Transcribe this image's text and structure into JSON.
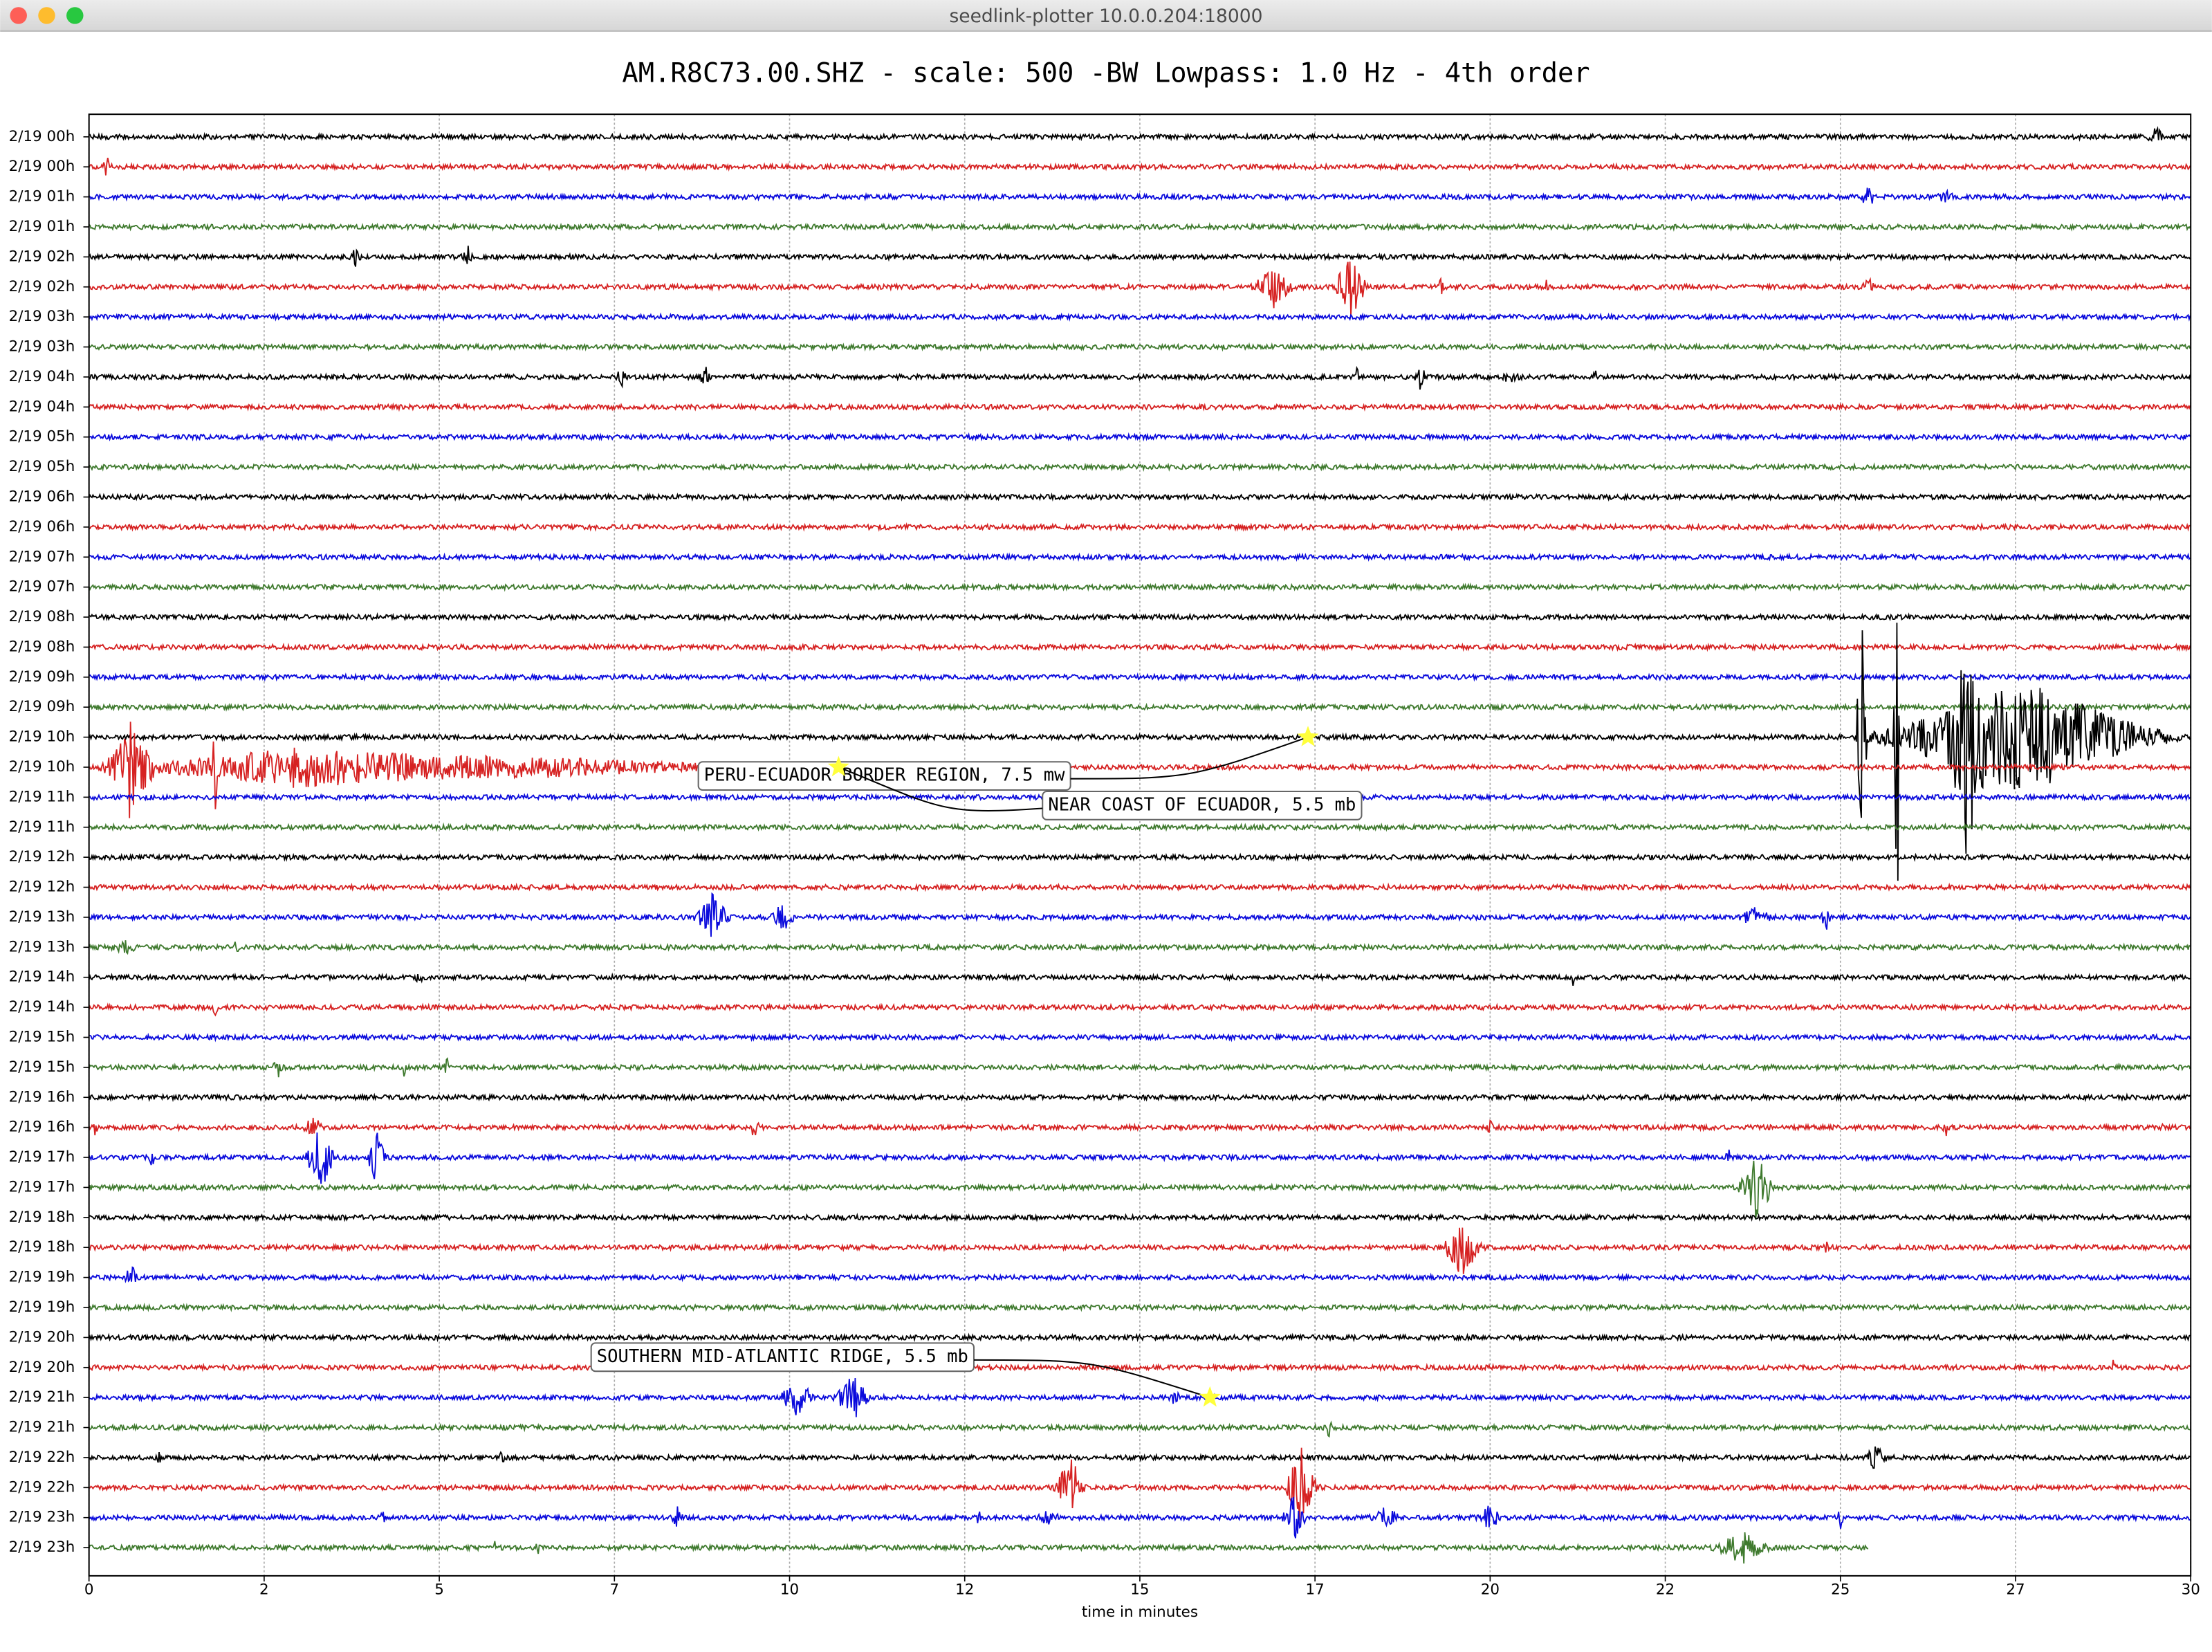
{
  "window": {
    "title": "seedlink-plotter 10.0.0.204:18000"
  },
  "chart_data": {
    "type": "helicorder",
    "title": "AM.R8C73.00.SHZ - scale: 500 -BW Lowpass: 1.0 Hz - 4th order",
    "xlabel": "time in minutes",
    "xlim": [
      0,
      30
    ],
    "xticks": [
      0,
      {
        "value": 2.5,
        "label": "2"
      },
      5,
      {
        "value": 7.5,
        "label": "7"
      },
      10,
      {
        "value": 12.5,
        "label": "12"
      },
      15,
      {
        "value": 17.5,
        "label": "17"
      },
      20,
      {
        "value": 22.5,
        "label": "22"
      },
      25,
      {
        "value": 27.5,
        "label": "27"
      },
      30
    ],
    "grid": true,
    "colors": [
      "#000000",
      "#d62222",
      "#0a0adc",
      "#3f7a2e"
    ],
    "rows": [
      {
        "label": "2/19 00h",
        "bursts": [
          [
            29.5,
            0.15,
            0.3
          ]
        ]
      },
      {
        "label": "2/19 00h",
        "bursts": [
          [
            0.25,
            0.1,
            0.3
          ]
        ]
      },
      {
        "label": "2/19 01h",
        "bursts": [
          [
            25.4,
            0.15,
            0.4
          ],
          [
            26.5,
            0.15,
            0.3
          ]
        ]
      },
      {
        "label": "2/19 01h",
        "bursts": []
      },
      {
        "label": "2/19 02h",
        "bursts": [
          [
            3.8,
            0.1,
            0.4
          ],
          [
            5.4,
            0.1,
            0.4
          ]
        ]
      },
      {
        "label": "2/19 02h",
        "bursts": [
          [
            16.9,
            0.35,
            0.7
          ],
          [
            18.0,
            0.3,
            1.1
          ],
          [
            19.3,
            0.05,
            0.3
          ],
          [
            20.8,
            0.05,
            0.2
          ],
          [
            25.4,
            0.1,
            0.3
          ]
        ]
      },
      {
        "label": "2/19 03h",
        "bursts": []
      },
      {
        "label": "2/19 03h",
        "bursts": []
      },
      {
        "label": "2/19 04h",
        "bursts": [
          [
            7.6,
            0.1,
            0.3
          ],
          [
            8.8,
            0.1,
            0.4
          ],
          [
            18.1,
            0.05,
            0.3
          ],
          [
            19.0,
            0.1,
            0.5
          ],
          [
            20.3,
            0.15,
            0.3
          ],
          [
            21.5,
            0.05,
            0.2
          ]
        ]
      },
      {
        "label": "2/19 04h",
        "bursts": []
      },
      {
        "label": "2/19 05h",
        "bursts": []
      },
      {
        "label": "2/19 05h",
        "bursts": []
      },
      {
        "label": "2/19 06h",
        "bursts": []
      },
      {
        "label": "2/19 06h",
        "bursts": []
      },
      {
        "label": "2/19 07h",
        "bursts": []
      },
      {
        "label": "2/19 07h",
        "bursts": []
      },
      {
        "label": "2/19 08h",
        "bursts": []
      },
      {
        "label": "2/19 08h",
        "bursts": []
      },
      {
        "label": "2/19 09h",
        "bursts": []
      },
      {
        "label": "2/19 09h",
        "bursts": []
      },
      {
        "label": "2/19 10h",
        "bursts": [
          [
            27.6,
            2.5,
            1.9
          ],
          [
            25.3,
            0.1,
            5
          ],
          [
            25.8,
            0.05,
            15
          ],
          [
            26.8,
            0.3,
            3
          ]
        ]
      },
      {
        "label": "2/19 10h",
        "bursts": [
          [
            0.6,
            0.5,
            1.2
          ],
          [
            3,
            3,
            0.6
          ],
          [
            6,
            4,
            0.35
          ],
          [
            0.6,
            0.05,
            2.5
          ],
          [
            1.8,
            0.05,
            1.5
          ]
        ]
      },
      {
        "label": "2/19 11h",
        "bursts": []
      },
      {
        "label": "2/19 11h",
        "bursts": []
      },
      {
        "label": "2/19 12h",
        "bursts": []
      },
      {
        "label": "2/19 12h",
        "bursts": []
      },
      {
        "label": "2/19 13h",
        "bursts": [
          [
            8.9,
            0.3,
            0.8
          ],
          [
            9.9,
            0.2,
            0.6
          ],
          [
            23.8,
            0.3,
            0.3
          ],
          [
            24.8,
            0.1,
            0.4
          ]
        ]
      },
      {
        "label": "2/19 13h",
        "bursts": [
          [
            0.5,
            0.2,
            0.4
          ],
          [
            2.1,
            0.05,
            0.3
          ]
        ]
      },
      {
        "label": "2/19 14h",
        "bursts": [
          [
            4.7,
            0.1,
            0.2
          ],
          [
            21.2,
            0.05,
            0.4
          ]
        ]
      },
      {
        "label": "2/19 14h",
        "bursts": [
          [
            1.8,
            0.05,
            0.3
          ]
        ]
      },
      {
        "label": "2/19 15h",
        "bursts": []
      },
      {
        "label": "2/19 15h",
        "bursts": [
          [
            2.7,
            0.1,
            0.3
          ],
          [
            4.5,
            0.05,
            0.3
          ],
          [
            5.1,
            0.05,
            0.4
          ]
        ]
      },
      {
        "label": "2/19 16h",
        "bursts": []
      },
      {
        "label": "2/19 16h",
        "bursts": [
          [
            0.1,
            0.05,
            0.4
          ],
          [
            3.2,
            0.2,
            0.3
          ],
          [
            9.5,
            0.1,
            0.3
          ],
          [
            20.0,
            0.05,
            0.3
          ],
          [
            26.5,
            0.05,
            0.3
          ],
          [
            29.6,
            0.03,
            0.3
          ]
        ]
      },
      {
        "label": "2/19 17h",
        "bursts": [
          [
            0.9,
            0.05,
            0.3
          ],
          [
            3.3,
            0.25,
            1.2
          ],
          [
            4.1,
            0.15,
            1.1
          ],
          [
            23.4,
            0.05,
            0.3
          ]
        ]
      },
      {
        "label": "2/19 17h",
        "bursts": [
          [
            23.8,
            0.3,
            1.2
          ]
        ]
      },
      {
        "label": "2/19 18h",
        "bursts": []
      },
      {
        "label": "2/19 18h",
        "bursts": [
          [
            19.6,
            0.35,
            1.0
          ],
          [
            24.8,
            0.05,
            0.3
          ]
        ]
      },
      {
        "label": "2/19 19h",
        "bursts": [
          [
            0.6,
            0.1,
            0.5
          ]
        ]
      },
      {
        "label": "2/19 19h",
        "bursts": []
      },
      {
        "label": "2/19 20h",
        "bursts": []
      },
      {
        "label": "2/19 20h",
        "bursts": [
          [
            28.9,
            0.03,
            0.3
          ]
        ]
      },
      {
        "label": "2/19 21h",
        "bursts": [
          [
            10.1,
            0.3,
            0.7
          ],
          [
            10.9,
            0.3,
            0.8
          ],
          [
            15.5,
            0.1,
            0.2
          ]
        ]
      },
      {
        "label": "2/19 21h",
        "bursts": [
          [
            17.7,
            0.05,
            0.4
          ]
        ]
      },
      {
        "label": "2/19 22h",
        "bursts": [
          [
            1.0,
            0.05,
            0.3
          ],
          [
            5.9,
            0.05,
            0.4
          ],
          [
            25.5,
            0.2,
            0.4
          ]
        ]
      },
      {
        "label": "2/19 22h",
        "bursts": [
          [
            14.0,
            0.25,
            1.2
          ],
          [
            17.3,
            0.3,
            1.3
          ]
        ]
      },
      {
        "label": "2/19 23h",
        "bursts": [
          [
            4.2,
            0.05,
            0.4
          ],
          [
            8.4,
            0.1,
            0.3
          ],
          [
            12.7,
            0.05,
            0.4
          ],
          [
            13.7,
            0.2,
            0.2
          ],
          [
            17.2,
            0.2,
            0.8
          ],
          [
            18.5,
            0.3,
            0.3
          ],
          [
            20.0,
            0.2,
            0.4
          ],
          [
            25.0,
            0.05,
            0.8
          ]
        ]
      },
      {
        "label": "2/19 23h",
        "end": 25.4,
        "bursts": [
          [
            23.6,
            0.5,
            0.5
          ],
          [
            5.8,
            0.05,
            0.2
          ],
          [
            6.4,
            0.05,
            0.2
          ]
        ]
      }
    ],
    "annotations": [
      {
        "text": "PERU-ECUADOR BORDER REGION, 7.5 mw",
        "x": 17.4,
        "row": 20
      },
      {
        "text": "NEAR COAST OF ECUADOR, 5.5 mb",
        "x": 10.7,
        "row": 21
      },
      {
        "text": "SOUTHERN MID-ATLANTIC RIDGE, 5.5 mb",
        "x": 16.0,
        "row": 42
      }
    ]
  }
}
